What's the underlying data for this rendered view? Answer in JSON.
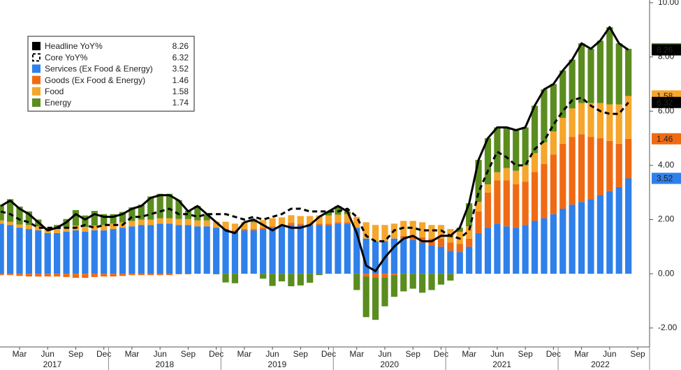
{
  "chart_data": {
    "type": "bar",
    "stacked": true,
    "categories": [
      null,
      null,
      "Mar",
      null,
      null,
      "Jun",
      null,
      null,
      "Sep",
      null,
      null,
      "Dec",
      null,
      null,
      "Mar",
      null,
      null,
      "Jun",
      null,
      null,
      "Sep",
      null,
      null,
      "Dec",
      null,
      null,
      "Mar",
      null,
      null,
      "Jun",
      null,
      null,
      "Sep",
      null,
      null,
      "Dec",
      null,
      null,
      "Mar",
      null,
      null,
      "Jun",
      null,
      null,
      "Sep",
      null,
      null,
      "Dec",
      null,
      null,
      "Mar",
      null,
      null,
      "Jun",
      null,
      null,
      "Sep",
      null,
      null,
      "Dec",
      null,
      null,
      "Mar",
      null,
      null,
      "Jun",
      null,
      null,
      "Sep"
    ],
    "years": [
      "2017",
      "2018",
      "2019",
      "2020",
      "2021",
      "2022"
    ],
    "ylim": [
      -2.7,
      10.1
    ],
    "yticks": [
      {
        "value": -2,
        "label": "-2.00"
      },
      {
        "value": 0,
        "label": "0.00"
      },
      {
        "value": 2,
        "label": "2.00"
      },
      {
        "value": 4,
        "label": "4.00"
      },
      {
        "value": 6,
        "label": "6.00"
      },
      {
        "value": 8,
        "label": "8.00"
      },
      {
        "value": 10,
        "label": "10.00"
      }
    ],
    "legend": "top-left",
    "series": [
      {
        "name": "Headline YoY%",
        "type": "line",
        "style": "solid",
        "color": "#000000",
        "values": [
          2.5,
          2.7,
          2.4,
          2.2,
          1.9,
          1.6,
          1.7,
          1.9,
          2.2,
          2.0,
          2.2,
          2.1,
          2.1,
          2.2,
          2.4,
          2.5,
          2.8,
          2.9,
          2.9,
          2.7,
          2.3,
          2.5,
          2.2,
          1.9,
          1.6,
          1.5,
          1.9,
          2.0,
          1.8,
          1.6,
          1.8,
          1.7,
          1.7,
          1.8,
          2.1,
          2.3,
          2.5,
          2.3,
          1.5,
          0.3,
          0.1,
          0.6,
          1.0,
          1.3,
          1.4,
          1.2,
          1.2,
          1.4,
          1.4,
          1.7,
          2.6,
          4.2,
          5.0,
          5.4,
          5.4,
          5.3,
          5.4,
          6.2,
          6.8,
          7.0,
          7.5,
          7.9,
          8.5,
          8.3,
          8.6,
          9.1,
          8.5,
          8.26,
          null
        ]
      },
      {
        "name": "Core YoY%",
        "type": "line",
        "style": "dashed",
        "color": "#000000",
        "values": [
          2.3,
          2.2,
          2.0,
          1.9,
          1.7,
          1.7,
          1.7,
          1.7,
          1.7,
          1.8,
          1.7,
          1.8,
          1.8,
          1.8,
          2.1,
          2.1,
          2.2,
          2.3,
          2.4,
          2.2,
          2.2,
          2.1,
          2.2,
          2.2,
          2.2,
          2.1,
          2.0,
          2.1,
          2.0,
          2.1,
          2.2,
          2.4,
          2.4,
          2.3,
          2.3,
          2.3,
          2.3,
          2.4,
          2.1,
          1.4,
          1.2,
          1.2,
          1.6,
          1.7,
          1.7,
          1.6,
          1.6,
          1.6,
          1.4,
          1.3,
          1.6,
          3.0,
          3.8,
          4.5,
          4.3,
          4.0,
          4.0,
          4.6,
          4.9,
          5.5,
          6.0,
          6.4,
          6.5,
          6.2,
          6.0,
          5.9,
          5.9,
          6.32,
          null
        ]
      },
      {
        "name": "Services (Ex Food & Energy)",
        "type": "bar",
        "color": "#2f80ea",
        "values": [
          1.85,
          1.8,
          1.7,
          1.65,
          1.6,
          1.5,
          1.5,
          1.55,
          1.6,
          1.55,
          1.6,
          1.6,
          1.65,
          1.7,
          1.75,
          1.8,
          1.8,
          1.85,
          1.85,
          1.8,
          1.8,
          1.75,
          1.75,
          1.7,
          1.65,
          1.55,
          1.6,
          1.6,
          1.65,
          1.7,
          1.75,
          1.8,
          1.8,
          1.8,
          1.8,
          1.8,
          1.85,
          1.85,
          1.7,
          1.3,
          1.2,
          1.2,
          1.3,
          1.3,
          1.25,
          1.15,
          1.05,
          1.0,
          0.85,
          0.8,
          1.0,
          1.5,
          1.7,
          1.85,
          1.75,
          1.7,
          1.8,
          1.95,
          2.05,
          2.2,
          2.4,
          2.55,
          2.65,
          2.75,
          2.9,
          3.05,
          3.2,
          3.52,
          null
        ]
      },
      {
        "name": "Goods (Ex Food & Energy)",
        "type": "bar",
        "color": "#f06a14",
        "values": [
          -0.05,
          -0.05,
          -0.08,
          -0.1,
          -0.1,
          -0.1,
          -0.1,
          -0.12,
          -0.15,
          -0.15,
          -0.12,
          -0.1,
          -0.1,
          -0.08,
          -0.05,
          -0.05,
          -0.05,
          -0.05,
          -0.05,
          -0.02,
          -0.02,
          0,
          0,
          0,
          0.02,
          0.05,
          0.05,
          0.05,
          0.05,
          0.05,
          0.05,
          0.08,
          0.05,
          0.05,
          0.05,
          0.05,
          0.05,
          0.05,
          0,
          -0.1,
          -0.15,
          -0.15,
          -0.05,
          0.1,
          0.15,
          0.2,
          0.25,
          0.3,
          0.3,
          0.3,
          0.3,
          0.8,
          1.3,
          1.6,
          1.7,
          1.6,
          1.6,
          1.8,
          2.0,
          2.2,
          2.4,
          2.5,
          2.5,
          2.3,
          2.1,
          1.85,
          1.6,
          1.46,
          null
        ]
      },
      {
        "name": "Food",
        "type": "bar",
        "color": "#f5a62b",
        "values": [
          0.12,
          0.12,
          0.12,
          0.15,
          0.15,
          0.15,
          0.15,
          0.15,
          0.18,
          0.18,
          0.18,
          0.2,
          0.2,
          0.2,
          0.2,
          0.2,
          0.2,
          0.2,
          0.2,
          0.22,
          0.22,
          0.22,
          0.22,
          0.22,
          0.25,
          0.25,
          0.25,
          0.25,
          0.28,
          0.3,
          0.28,
          0.28,
          0.28,
          0.28,
          0.3,
          0.3,
          0.28,
          0.3,
          0.4,
          0.6,
          0.6,
          0.6,
          0.55,
          0.55,
          0.55,
          0.55,
          0.5,
          0.5,
          0.5,
          0.45,
          0.45,
          0.35,
          0.3,
          0.3,
          0.45,
          0.5,
          0.6,
          0.7,
          0.8,
          0.85,
          0.95,
          1.05,
          1.15,
          1.25,
          1.3,
          1.35,
          1.45,
          1.58,
          null
        ]
      },
      {
        "name": "Energy",
        "type": "bar",
        "color": "#5b8c1f",
        "values": [
          0.58,
          0.83,
          0.66,
          0.5,
          0.25,
          0.05,
          0.15,
          0.32,
          0.57,
          0.42,
          0.54,
          0.4,
          0.35,
          0.38,
          0.5,
          0.55,
          0.85,
          0.9,
          0.9,
          0.7,
          0.3,
          0.53,
          0.23,
          -0.02,
          -0.32,
          -0.35,
          0,
          0.1,
          -0.18,
          -0.45,
          -0.28,
          -0.46,
          -0.43,
          -0.33,
          -0.05,
          0.15,
          0.32,
          0.1,
          -0.6,
          -1.5,
          -1.55,
          -1.05,
          -0.8,
          -0.65,
          -0.55,
          -0.7,
          -0.6,
          -0.4,
          -0.25,
          0.15,
          0.85,
          1.55,
          1.7,
          1.65,
          1.5,
          1.5,
          1.4,
          1.75,
          1.95,
          1.75,
          1.75,
          1.8,
          2.2,
          2.0,
          2.3,
          2.85,
          2.25,
          1.74,
          null
        ]
      }
    ]
  }
}
